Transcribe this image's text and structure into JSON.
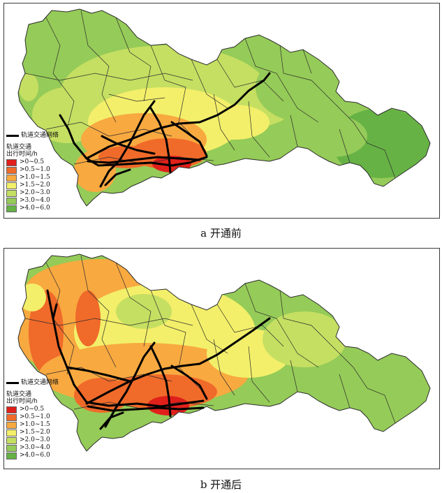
{
  "panels": [
    {
      "id": "a",
      "caption": "a 开通前",
      "legend_line_label": "轨道交通网络",
      "legend_title_line1": "轨道交通",
      "legend_title_line2": "出行时间/h"
    },
    {
      "id": "b",
      "caption": "b 开通后",
      "legend_line_label": "轨道交通网络",
      "legend_title_line1": "轨道交通",
      "legend_title_line2": "出行时间/h"
    }
  ],
  "legend_classes": [
    {
      "label": ">0~0.5",
      "color": "#e0201b"
    },
    {
      "label": ">0.5~1.0",
      "color": "#f06a2a"
    },
    {
      "label": ">1.0~1.5",
      "color": "#f8a940"
    },
    {
      "label": ">1.5~2.0",
      "color": "#f3ef6a"
    },
    {
      "label": ">2.0~3.0",
      "color": "#c5df62"
    },
    {
      "label": ">3.0~4.0",
      "color": "#95cb58"
    },
    {
      "label": ">4.0~6.0",
      "color": "#66b245"
    }
  ],
  "rail_color": "#000000",
  "boundary_color": "#2b2b2b"
}
